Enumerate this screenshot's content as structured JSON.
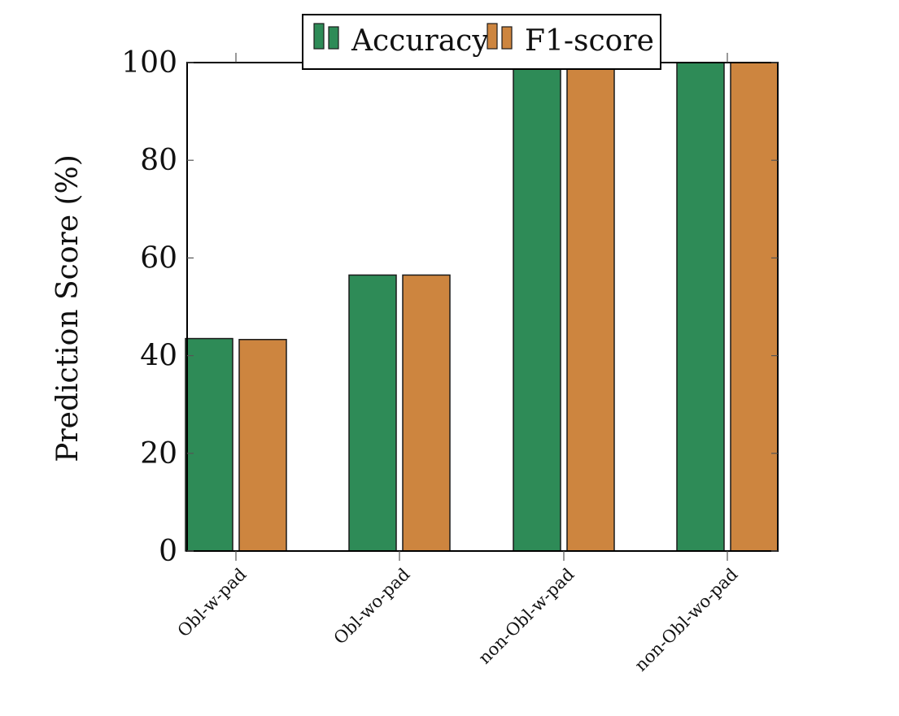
{
  "chart_data": {
    "type": "bar",
    "categories": [
      "Obl-w-pad",
      "Obl-wo-pad",
      "non-Obl-w-pad",
      "non-Obl-wo-pad"
    ],
    "series": [
      {
        "name": "Accuracy",
        "color": "#2e8b57",
        "values": [
          43.5,
          56.5,
          99,
          100
        ]
      },
      {
        "name": "F1-score",
        "color": "#cd853f",
        "values": [
          43.3,
          56.5,
          99,
          100
        ]
      }
    ],
    "title": "",
    "xlabel": "",
    "ylabel": "Prediction Score (%)",
    "ylim": [
      0,
      100
    ],
    "yticks": [
      0,
      20,
      40,
      60,
      80,
      100
    ],
    "grid": false,
    "legend_position": "top-center"
  }
}
